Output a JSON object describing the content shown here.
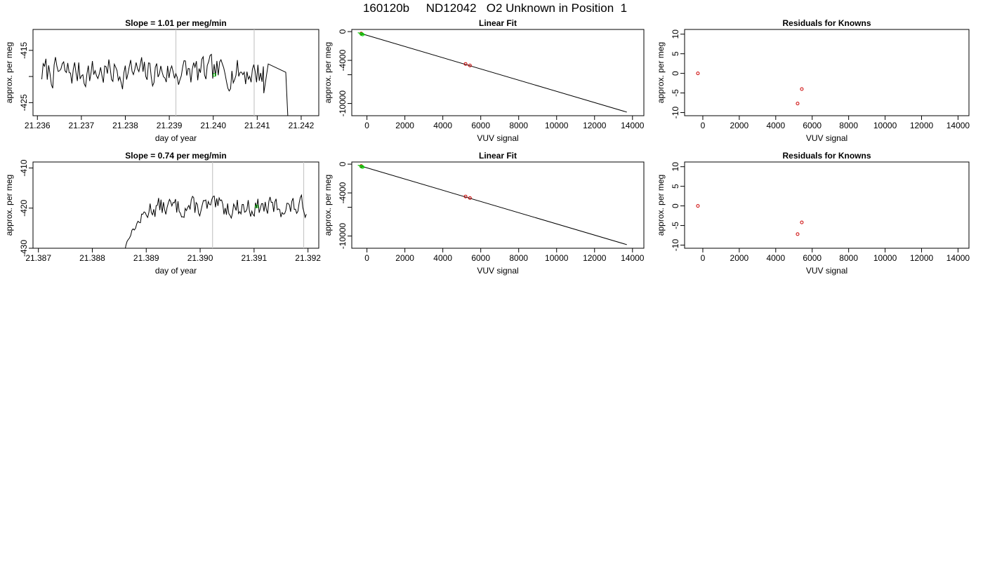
{
  "page_title": "160120b     ND12042   O2 Unknown in Position  1",
  "colors": {
    "line": "#000000",
    "unknown_point": "#00cc00",
    "known_point": "#cc0000",
    "marker_line": "#c8c8c8",
    "axis": "#000000"
  },
  "chart_data": [
    {
      "type": "line",
      "title": "Slope =  1.01  per meg/min",
      "xlabel": "day of year",
      "ylabel": "approx. per meg",
      "xlim": [
        21.2359,
        21.2424
      ],
      "ylim": [
        -427.5,
        -411.0
      ],
      "xticks": [
        21.236,
        21.237,
        21.238,
        21.239,
        21.24,
        21.241,
        21.242
      ],
      "xtick_labels": [
        "21.236",
        "21.237",
        "21.238",
        "21.239",
        "21.240",
        "21.241",
        "21.242"
      ],
      "yticks": [
        -425,
        -420,
        -415
      ],
      "ytick_labels": [
        "-425",
        "",
        "-415"
      ],
      "trace": {
        "x_start": 21.2361,
        "x_end": 21.2417,
        "mean": -419.2,
        "amplitude": 1.6,
        "n": 180,
        "seed": 7,
        "ramp": null,
        "drop": {
          "from": 21.24115,
          "to_x": 21.2417,
          "to_y": -428.5
        }
      },
      "marker_lines_x": [
        21.23915,
        21.24093
      ],
      "green_points": [
        {
          "x": 21.24003,
          "y": -419.7
        }
      ]
    },
    {
      "type": "scatter",
      "title": "Linear Fit",
      "xlabel": "VUV signal",
      "ylabel": "approx. per meg",
      "xlim": [
        -800,
        14600
      ],
      "ylim": [
        -11700,
        300
      ],
      "xticks": [
        0,
        2000,
        4000,
        6000,
        8000,
        10000,
        12000,
        14000
      ],
      "xtick_labels": [
        "0",
        "2000",
        "4000",
        "6000",
        "8000",
        "10000",
        "12000",
        "14000"
      ],
      "yticks": [
        -10000,
        -6000,
        -4000,
        0
      ],
      "ytick_labels": [
        "-10000",
        "",
        "-4000",
        "0"
      ],
      "fit_line": {
        "x": [
          -400,
          13700
        ],
        "y": [
          -200,
          -11200
        ]
      },
      "green_points": [
        {
          "x": -300,
          "y": -330
        },
        {
          "x": -230,
          "y": -400
        }
      ],
      "red_points": [
        {
          "x": 5200,
          "y": -4500
        },
        {
          "x": 5430,
          "y": -4710
        },
        {
          "x": -300,
          "y": -260
        }
      ]
    },
    {
      "type": "scatter",
      "title": "Residuals for Knowns",
      "xlabel": "VUV signal",
      "ylabel": "approx. per meg",
      "xlim": [
        -1000,
        14600
      ],
      "ylim": [
        -10.8,
        11.2
      ],
      "xticks": [
        0,
        2000,
        4000,
        6000,
        8000,
        10000,
        12000,
        14000
      ],
      "xtick_labels": [
        "0",
        "2000",
        "4000",
        "6000",
        "8000",
        "10000",
        "12000",
        "14000"
      ],
      "yticks": [
        -10,
        -5,
        0,
        5,
        10
      ],
      "ytick_labels": [
        "-10",
        "-5",
        "0",
        "5",
        "10"
      ],
      "red_points": [
        {
          "x": -270,
          "y": 0.0
        },
        {
          "x": 5200,
          "y": -7.7
        },
        {
          "x": 5430,
          "y": -4.0
        }
      ]
    },
    {
      "type": "line",
      "title": "Slope =  0.74  per meg/min",
      "xlabel": "day of year",
      "ylabel": "approx. per meg",
      "xlim": [
        21.3869,
        21.3922
      ],
      "ylim": [
        -430.0,
        -408.5
      ],
      "xticks": [
        21.387,
        21.388,
        21.389,
        21.39,
        21.391,
        21.392
      ],
      "xtick_labels": [
        "21.387",
        "21.388",
        "21.389",
        "21.390",
        "21.391",
        "21.392"
      ],
      "yticks": [
        -430,
        -420,
        -410
      ],
      "ytick_labels": [
        "-430",
        "-420",
        "-410"
      ],
      "trace": {
        "x_start": 21.3886,
        "x_end": 21.39197,
        "mean": -419.8,
        "amplitude": 1.4,
        "n": 150,
        "seed": 13,
        "ramp": {
          "start_y": -431,
          "end_x": 21.3891
        },
        "drop": null
      },
      "marker_lines_x": [
        21.39023,
        21.39192
      ],
      "green_points": [
        {
          "x": 21.39105,
          "y": -419.6
        }
      ]
    },
    {
      "type": "scatter",
      "title": "Linear Fit",
      "xlabel": "VUV signal",
      "ylabel": "approx. per meg",
      "xlim": [
        -800,
        14600
      ],
      "ylim": [
        -11700,
        300
      ],
      "xticks": [
        0,
        2000,
        4000,
        6000,
        8000,
        10000,
        12000,
        14000
      ],
      "xtick_labels": [
        "0",
        "2000",
        "4000",
        "6000",
        "8000",
        "10000",
        "12000",
        "14000"
      ],
      "yticks": [
        -10000,
        -6000,
        -4000,
        0
      ],
      "ytick_labels": [
        "-10000",
        "",
        "-4000",
        "0"
      ],
      "fit_line": {
        "x": [
          -400,
          13700
        ],
        "y": [
          -200,
          -11200
        ]
      },
      "green_points": [
        {
          "x": -300,
          "y": -330
        },
        {
          "x": -230,
          "y": -400
        }
      ],
      "red_points": [
        {
          "x": 5200,
          "y": -4500
        },
        {
          "x": 5430,
          "y": -4710
        },
        {
          "x": -300,
          "y": -260
        }
      ]
    },
    {
      "type": "scatter",
      "title": "Residuals for Knowns",
      "xlabel": "VUV signal",
      "ylabel": "approx. per meg",
      "xlim": [
        -1000,
        14600
      ],
      "ylim": [
        -10.8,
        11.2
      ],
      "xticks": [
        0,
        2000,
        4000,
        6000,
        8000,
        10000,
        12000,
        14000
      ],
      "xtick_labels": [
        "0",
        "2000",
        "4000",
        "6000",
        "8000",
        "10000",
        "12000",
        "14000"
      ],
      "yticks": [
        -10,
        -5,
        0,
        5,
        10
      ],
      "ytick_labels": [
        "-10",
        "-5",
        "0",
        "5",
        "10"
      ],
      "red_points": [
        {
          "x": -270,
          "y": 0.0
        },
        {
          "x": 5200,
          "y": -7.2
        },
        {
          "x": 5430,
          "y": -4.2
        }
      ]
    }
  ]
}
